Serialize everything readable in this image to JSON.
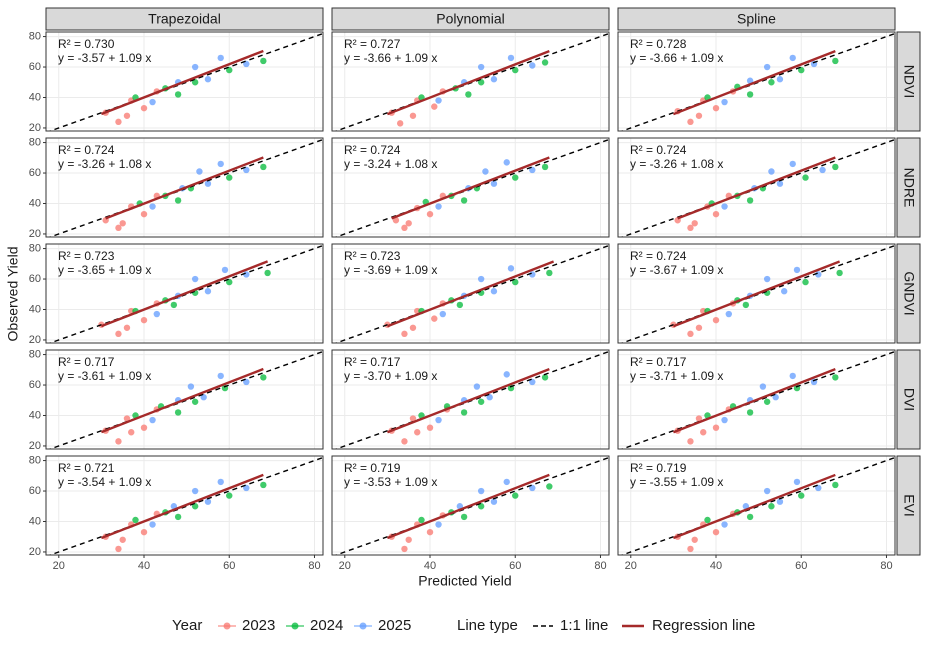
{
  "chart_data": {
    "type": "scatter",
    "columns": [
      "Trapezoidal",
      "Polynomial",
      "Spline"
    ],
    "rows": [
      "NDVI",
      "NDRE",
      "GNDVI",
      "DVI",
      "EVI"
    ],
    "xlabel": "Predicted Yield",
    "ylabel": "Observed Yield",
    "xlim": [
      17,
      82
    ],
    "ylim": [
      18,
      83
    ],
    "xticks": [
      20,
      40,
      60,
      80
    ],
    "yticks": [
      20,
      40,
      60,
      80
    ],
    "grid": true,
    "legend_title": "Year",
    "series": [
      {
        "name": "2023",
        "color": "#F8766D"
      },
      {
        "name": "2024",
        "color": "#00BA38"
      },
      {
        "name": "2025",
        "color": "#619CFF"
      }
    ],
    "line_legend_title": "Line type",
    "lines": [
      {
        "name": "1:1 line",
        "color": "#000000"
      },
      {
        "name": "Regression line",
        "color": "#A52A2A"
      }
    ],
    "panels": [
      {
        "r2_label": "R² = 0.730",
        "equation": "y = -3.57 + 1.09 x",
        "intercept": -3.57,
        "slope": 1.09,
        "fit_x": [
          30,
          68
        ],
        "points": [
          {
            "x": [
              31,
              34,
              37,
              40,
              43,
              36
            ],
            "y": [
              30,
              24,
              38,
              33,
              44,
              28
            ]
          },
          {
            "x": [
              38,
              45,
              52,
              60,
              68,
              48
            ],
            "y": [
              40,
              46,
              50,
              58,
              64,
              42
            ]
          },
          {
            "x": [
              42,
              48,
              55,
              58,
              64,
              52
            ],
            "y": [
              37,
              50,
              52,
              66,
              62,
              60
            ]
          }
        ]
      },
      {
        "r2_label": "R² = 0.727",
        "equation": "y = -3.66 + 1.09 x",
        "intercept": -3.66,
        "slope": 1.09,
        "fit_x": [
          30,
          68
        ],
        "points": [
          {
            "x": [
              31,
              33,
              37,
              41,
              43,
              36
            ],
            "y": [
              30,
              23,
              38,
              34,
              44,
              28
            ]
          },
          {
            "x": [
              38,
              46,
              52,
              60,
              67,
              49
            ],
            "y": [
              40,
              46,
              50,
              58,
              63,
              42
            ]
          },
          {
            "x": [
              42,
              48,
              55,
              59,
              64,
              52
            ],
            "y": [
              38,
              50,
              52,
              66,
              61,
              60
            ]
          }
        ]
      },
      {
        "r2_label": "R² = 0.728",
        "equation": "y = -3.66 + 1.09 x",
        "intercept": -3.66,
        "slope": 1.09,
        "fit_x": [
          30,
          68
        ],
        "points": [
          {
            "x": [
              31,
              34,
              37,
              40,
              44,
              36
            ],
            "y": [
              31,
              24,
              38,
              33,
              44,
              28
            ]
          },
          {
            "x": [
              38,
              45,
              53,
              60,
              68,
              48
            ],
            "y": [
              40,
              47,
              50,
              58,
              64,
              42
            ]
          },
          {
            "x": [
              42,
              48,
              55,
              58,
              63,
              52
            ],
            "y": [
              37,
              51,
              52,
              66,
              62,
              60
            ]
          }
        ]
      },
      {
        "r2_label": "R² = 0.724",
        "equation": "y = -3.26 + 1.08 x",
        "intercept": -3.26,
        "slope": 1.08,
        "fit_x": [
          31,
          68
        ],
        "points": [
          {
            "x": [
              31,
              34,
              37,
              40,
              43,
              35
            ],
            "y": [
              29,
              24,
              38,
              33,
              45,
              27
            ]
          },
          {
            "x": [
              39,
              45,
              51,
              60,
              68,
              48
            ],
            "y": [
              40,
              45,
              50,
              57,
              64,
              42
            ]
          },
          {
            "x": [
              42,
              49,
              55,
              58,
              64,
              53
            ],
            "y": [
              38,
              50,
              53,
              66,
              62,
              61
            ]
          }
        ]
      },
      {
        "r2_label": "R² = 0.724",
        "equation": "y = -3.24 + 1.08 x",
        "intercept": -3.24,
        "slope": 1.08,
        "fit_x": [
          31,
          68
        ],
        "points": [
          {
            "x": [
              32,
              34,
              37,
              40,
              43,
              35
            ],
            "y": [
              29,
              24,
              37,
              33,
              45,
              27
            ]
          },
          {
            "x": [
              39,
              45,
              51,
              60,
              67,
              48
            ],
            "y": [
              41,
              45,
              50,
              57,
              64,
              42
            ]
          },
          {
            "x": [
              42,
              49,
              55,
              58,
              64,
              53
            ],
            "y": [
              38,
              50,
              53,
              67,
              62,
              61
            ]
          }
        ]
      },
      {
        "r2_label": "R² = 0.724",
        "equation": "y = -3.26 + 1.08 x",
        "intercept": -3.26,
        "slope": 1.08,
        "fit_x": [
          31,
          68
        ],
        "points": [
          {
            "x": [
              31,
              34,
              38,
              40,
              43,
              35
            ],
            "y": [
              29,
              24,
              38,
              33,
              45,
              27
            ]
          },
          {
            "x": [
              39,
              45,
              51,
              61,
              68,
              48
            ],
            "y": [
              40,
              45,
              50,
              57,
              64,
              42
            ]
          },
          {
            "x": [
              42,
              49,
              55,
              58,
              65,
              53
            ],
            "y": [
              38,
              50,
              53,
              66,
              62,
              61
            ]
          }
        ]
      },
      {
        "r2_label": "R² = 0.723",
        "equation": "y = -3.65 + 1.09 x",
        "intercept": -3.65,
        "slope": 1.09,
        "fit_x": [
          30,
          69
        ],
        "points": [
          {
            "x": [
              30,
              34,
              37,
              40,
              43,
              36
            ],
            "y": [
              30,
              24,
              39,
              33,
              44,
              28
            ]
          },
          {
            "x": [
              38,
              45,
              52,
              60,
              69,
              47
            ],
            "y": [
              39,
              46,
              51,
              58,
              64,
              43
            ]
          },
          {
            "x": [
              43,
              48,
              55,
              59,
              64,
              52
            ],
            "y": [
              37,
              49,
              52,
              66,
              63,
              60
            ]
          }
        ]
      },
      {
        "r2_label": "R² = 0.723",
        "equation": "y = -3.69 + 1.09 x",
        "intercept": -3.69,
        "slope": 1.09,
        "fit_x": [
          30,
          69
        ],
        "points": [
          {
            "x": [
              30,
              34,
              37,
              41,
              43,
              36
            ],
            "y": [
              30,
              24,
              39,
              34,
              44,
              28
            ]
          },
          {
            "x": [
              38,
              45,
              52,
              60,
              68,
              47
            ],
            "y": [
              39,
              46,
              51,
              58,
              64,
              43
            ]
          },
          {
            "x": [
              43,
              48,
              55,
              59,
              64,
              52
            ],
            "y": [
              37,
              49,
              52,
              67,
              63,
              60
            ]
          }
        ]
      },
      {
        "r2_label": "R² = 0.724",
        "equation": "y = -3.67 + 1.09 x",
        "intercept": -3.67,
        "slope": 1.09,
        "fit_x": [
          30,
          69
        ],
        "points": [
          {
            "x": [
              30,
              34,
              37,
              40,
              44,
              36
            ],
            "y": [
              30,
              24,
              39,
              33,
              44,
              28
            ]
          },
          {
            "x": [
              38,
              45,
              52,
              61,
              69,
              47
            ],
            "y": [
              39,
              46,
              51,
              58,
              64,
              43
            ]
          },
          {
            "x": [
              43,
              48,
              56,
              59,
              64,
              52
            ],
            "y": [
              37,
              49,
              52,
              66,
              63,
              60
            ]
          }
        ]
      },
      {
        "r2_label": "R² = 0.717",
        "equation": "y = -3.61 + 1.09 x",
        "intercept": -3.61,
        "slope": 1.09,
        "fit_x": [
          30,
          68
        ],
        "points": [
          {
            "x": [
              31,
              34,
              36,
              40,
              43,
              37
            ],
            "y": [
              30,
              23,
              38,
              32,
              44,
              29
            ]
          },
          {
            "x": [
              38,
              44,
              52,
              59,
              68,
              48
            ],
            "y": [
              40,
              46,
              49,
              58,
              65,
              42
            ]
          },
          {
            "x": [
              42,
              48,
              54,
              58,
              64,
              51
            ],
            "y": [
              37,
              50,
              52,
              66,
              62,
              59
            ]
          }
        ]
      },
      {
        "r2_label": "R² = 0.717",
        "equation": "y = -3.70 + 1.09 x",
        "intercept": -3.7,
        "slope": 1.09,
        "fit_x": [
          30,
          68
        ],
        "points": [
          {
            "x": [
              31,
              34,
              36,
              40,
              44,
              37
            ],
            "y": [
              30,
              23,
              38,
              32,
              44,
              29
            ]
          },
          {
            "x": [
              38,
              44,
              52,
              59,
              67,
              48
            ],
            "y": [
              40,
              46,
              49,
              58,
              65,
              42
            ]
          },
          {
            "x": [
              42,
              48,
              54,
              58,
              64,
              51
            ],
            "y": [
              37,
              50,
              52,
              67,
              62,
              59
            ]
          }
        ]
      },
      {
        "r2_label": "R² = 0.717",
        "equation": "y = -3.71 + 1.09 x",
        "intercept": -3.71,
        "slope": 1.09,
        "fit_x": [
          30,
          68
        ],
        "points": [
          {
            "x": [
              31,
              34,
              36,
              40,
              43,
              37
            ],
            "y": [
              30,
              23,
              38,
              32,
              44,
              29
            ]
          },
          {
            "x": [
              38,
              44,
              52,
              59,
              68,
              48
            ],
            "y": [
              40,
              46,
              49,
              58,
              65,
              42
            ]
          },
          {
            "x": [
              42,
              48,
              54,
              58,
              63,
              51
            ],
            "y": [
              37,
              50,
              52,
              66,
              62,
              59
            ]
          }
        ]
      },
      {
        "r2_label": "R² = 0.721",
        "equation": "y = -3.54 + 1.09 x",
        "intercept": -3.54,
        "slope": 1.09,
        "fit_x": [
          30,
          68
        ],
        "points": [
          {
            "x": [
              31,
              34,
              37,
              40,
              43,
              35
            ],
            "y": [
              30,
              22,
              38,
              33,
              45,
              28
            ]
          },
          {
            "x": [
              38,
              45,
              52,
              60,
              68,
              48
            ],
            "y": [
              41,
              46,
              50,
              57,
              64,
              43
            ]
          },
          {
            "x": [
              42,
              47,
              55,
              58,
              64,
              52
            ],
            "y": [
              38,
              50,
              53,
              66,
              62,
              60
            ]
          }
        ]
      },
      {
        "r2_label": "R² = 0.719",
        "equation": "y = -3.53 + 1.09 x",
        "intercept": -3.53,
        "slope": 1.09,
        "fit_x": [
          30,
          68
        ],
        "points": [
          {
            "x": [
              31,
              34,
              37,
              40,
              43,
              35
            ],
            "y": [
              30,
              22,
              38,
              33,
              44,
              28
            ]
          },
          {
            "x": [
              38,
              45,
              52,
              60,
              68,
              48
            ],
            "y": [
              41,
              46,
              50,
              57,
              63,
              43
            ]
          },
          {
            "x": [
              42,
              47,
              55,
              58,
              64,
              52
            ],
            "y": [
              38,
              50,
              53,
              66,
              62,
              60
            ]
          }
        ]
      },
      {
        "r2_label": "R² = 0.719",
        "equation": "y = -3.55 + 1.09 x",
        "intercept": -3.55,
        "slope": 1.09,
        "fit_x": [
          30,
          68
        ],
        "points": [
          {
            "x": [
              31,
              34,
              37,
              40,
              44,
              35
            ],
            "y": [
              30,
              22,
              38,
              33,
              45,
              28
            ]
          },
          {
            "x": [
              38,
              45,
              53,
              60,
              68,
              48
            ],
            "y": [
              41,
              46,
              50,
              57,
              64,
              43
            ]
          },
          {
            "x": [
              42,
              47,
              55,
              59,
              64,
              52
            ],
            "y": [
              38,
              50,
              53,
              66,
              62,
              60
            ]
          }
        ]
      }
    ]
  }
}
